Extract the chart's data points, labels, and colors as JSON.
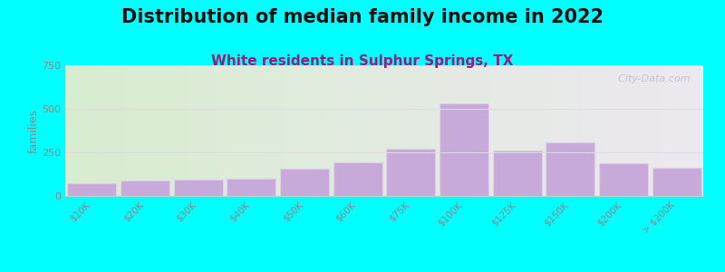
{
  "title": "Distribution of median family income in 2022",
  "subtitle": "White residents in Sulphur Springs, TX",
  "ylabel": "families",
  "categories": [
    "$10K",
    "$20K",
    "$30K",
    "$40K",
    "$50K",
    "$60K",
    "$75K",
    "$100K",
    "$125K",
    "$150K",
    "$200K",
    "> $200K"
  ],
  "values": [
    75,
    90,
    95,
    100,
    155,
    195,
    270,
    530,
    260,
    305,
    185,
    160
  ],
  "bar_color": "#C8AADA",
  "bar_edge_color": "#DDD0E8",
  "background_color": "#00FFFF",
  "plot_bg_color_left": "#D8EDD0",
  "plot_bg_color_right": "#EDE8F0",
  "ylim": [
    0,
    750
  ],
  "yticks": [
    0,
    250,
    500,
    750
  ],
  "title_fontsize": 15,
  "subtitle_fontsize": 11,
  "subtitle_color": "#9B1B7B",
  "watermark": "  City-Data.com",
  "watermark_color": "#BBBBCC",
  "grid_color": "#DDDDDD",
  "tick_color": "#888888",
  "spine_color": "#CCCCCC"
}
